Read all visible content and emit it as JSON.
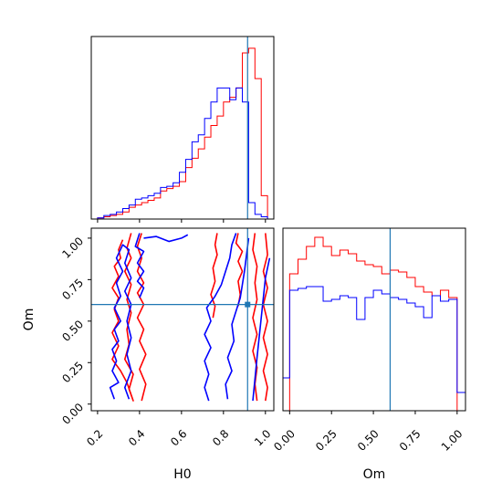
{
  "chart_data": {
    "type": "corner",
    "parameters": [
      "H0",
      "Om"
    ],
    "truth": {
      "H0": 0.915,
      "Om": 0.6,
      "color": "#1f77b4"
    },
    "series_colors": {
      "red": "#ff0000",
      "blue": "#0000ff"
    },
    "panels": [
      {
        "name": "H0 marginal",
        "type": "histogram-step",
        "xlim": [
          0.17,
          1.04
        ],
        "bin_edges": [
          0.17,
          0.2,
          0.23,
          0.26,
          0.29,
          0.32,
          0.35,
          0.38,
          0.41,
          0.44,
          0.47,
          0.5,
          0.53,
          0.56,
          0.59,
          0.62,
          0.65,
          0.68,
          0.71,
          0.74,
          0.77,
          0.8,
          0.83,
          0.86,
          0.89,
          0.92,
          0.95,
          0.98,
          1.01,
          1.04
        ],
        "series": [
          {
            "name": "red",
            "color": "#ff0000",
            "values": [
              0,
              0.005,
              0.01,
              0.015,
              0.02,
              0.03,
              0.05,
              0.06,
              0.07,
              0.08,
              0.09,
              0.12,
              0.13,
              0.14,
              0.16,
              0.22,
              0.26,
              0.3,
              0.35,
              0.4,
              0.44,
              0.5,
              0.52,
              0.56,
              0.71,
              0.73,
              0.6,
              0.1,
              0,
              0
            ]
          },
          {
            "name": "blue",
            "color": "#0000ff",
            "values": [
              0,
              0.005,
              0.015,
              0.02,
              0.03,
              0.045,
              0.06,
              0.085,
              0.09,
              0.1,
              0.11,
              0.135,
              0.14,
              0.155,
              0.2,
              0.255,
              0.33,
              0.36,
              0.43,
              0.5,
              0.56,
              0.56,
              0.51,
              0.56,
              0.5,
              0.07,
              0.02,
              0.01,
              0,
              0
            ]
          }
        ]
      },
      {
        "name": "Om marginal",
        "type": "histogram-step",
        "xlim": [
          -0.04,
          1.05
        ],
        "bin_edges": [
          -0.04,
          0.0,
          0.05,
          0.1,
          0.15,
          0.2,
          0.25,
          0.3,
          0.35,
          0.4,
          0.45,
          0.5,
          0.55,
          0.6,
          0.65,
          0.7,
          0.75,
          0.8,
          0.85,
          0.9,
          0.95,
          1.0,
          1.05
        ],
        "series": [
          {
            "name": "red",
            "color": "#ff0000",
            "values": [
              0,
              0.75,
              0.83,
              0.9,
              0.95,
              0.9,
              0.85,
              0.88,
              0.86,
              0.82,
              0.8,
              0.79,
              0.75,
              0.77,
              0.76,
              0.73,
              0.68,
              0.65,
              0.63,
              0.66,
              0.62,
              0
            ]
          },
          {
            "name": "blue",
            "color": "#0000ff",
            "values": [
              0.18,
              0.66,
              0.67,
              0.68,
              0.68,
              0.6,
              0.61,
              0.63,
              0.62,
              0.5,
              0.62,
              0.66,
              0.64,
              0.62,
              0.61,
              0.59,
              0.57,
              0.51,
              0.63,
              0.6,
              0.61,
              0.1
            ]
          }
        ]
      },
      {
        "name": "H0 vs Om",
        "type": "contour",
        "xlim": [
          0.17,
          1.04
        ],
        "ylim": [
          -0.04,
          1.06
        ],
        "series": [
          {
            "name": "red",
            "color": "#ff0000",
            "levels": [
              [
                [
                  0.32,
                  0.99
                ],
                [
                  0.3,
                  0.93
                ],
                [
                  0.31,
                  0.88
                ],
                [
                  0.28,
                  0.83
                ],
                [
                  0.3,
                  0.77
                ],
                [
                  0.27,
                  0.7
                ],
                [
                  0.3,
                  0.64
                ],
                [
                  0.28,
                  0.57
                ],
                [
                  0.3,
                  0.5
                ],
                [
                  0.27,
                  0.43
                ],
                [
                  0.3,
                  0.35
                ],
                [
                  0.27,
                  0.27
                ],
                [
                  0.31,
                  0.2
                ],
                [
                  0.34,
                  0.13
                ],
                [
                  0.37,
                  0.02
                ],
                [
                  0.35,
                  0.09
                ],
                [
                  0.37,
                  0.18
                ],
                [
                  0.33,
                  0.27
                ],
                [
                  0.35,
                  0.36
                ],
                [
                  0.34,
                  0.45
                ],
                [
                  0.36,
                  0.55
                ],
                [
                  0.34,
                  0.63
                ],
                [
                  0.36,
                  0.72
                ],
                [
                  0.33,
                  0.8
                ],
                [
                  0.36,
                  0.88
                ],
                [
                  0.34,
                  0.94
                ],
                [
                  0.36,
                  1.03
                ]
              ],
              [
                [
                  0.41,
                  1.03
                ],
                [
                  0.39,
                  0.95
                ],
                [
                  0.41,
                  0.88
                ],
                [
                  0.39,
                  0.8
                ],
                [
                  0.42,
                  0.73
                ],
                [
                  0.39,
                  0.67
                ],
                [
                  0.42,
                  0.6
                ],
                [
                  0.39,
                  0.52
                ],
                [
                  0.42,
                  0.45
                ],
                [
                  0.4,
                  0.38
                ],
                [
                  0.43,
                  0.3
                ],
                [
                  0.4,
                  0.21
                ],
                [
                  0.43,
                  0.12
                ],
                [
                  0.41,
                  0.02
                ]
              ],
              [
                [
                  0.77,
                  1.03
                ],
                [
                  0.76,
                  0.96
                ],
                [
                  0.77,
                  0.9
                ],
                [
                  0.75,
                  0.82
                ],
                [
                  0.76,
                  0.74
                ],
                [
                  0.74,
                  0.66
                ],
                [
                  0.76,
                  0.59
                ],
                [
                  0.75,
                  0.52
                ]
              ],
              [
                [
                  0.87,
                  1.03
                ],
                [
                  0.86,
                  0.97
                ],
                [
                  0.89,
                  0.92
                ],
                [
                  0.87,
                  0.86
                ],
                [
                  0.89,
                  0.8
                ],
                [
                  0.87,
                  0.74
                ],
                [
                  0.88,
                  0.66
                ],
                [
                  0.87,
                  0.59
                ]
              ],
              [
                [
                  0.95,
                  1.03
                ],
                [
                  0.94,
                  0.93
                ],
                [
                  0.96,
                  0.83
                ],
                [
                  0.95,
                  0.73
                ],
                [
                  0.96,
                  0.63
                ],
                [
                  0.94,
                  0.52
                ],
                [
                  0.96,
                  0.42
                ],
                [
                  0.94,
                  0.32
                ],
                [
                  0.96,
                  0.22
                ],
                [
                  0.95,
                  0.12
                ],
                [
                  0.96,
                  0.02
                ]
              ],
              [
                [
                  1.0,
                  1.03
                ],
                [
                  1.01,
                  0.9
                ],
                [
                  0.99,
                  0.8
                ],
                [
                  1.01,
                  0.7
                ],
                [
                  0.99,
                  0.6
                ],
                [
                  1.01,
                  0.5
                ],
                [
                  0.99,
                  0.4
                ],
                [
                  1.01,
                  0.3
                ],
                [
                  0.99,
                  0.2
                ],
                [
                  1.01,
                  0.1
                ],
                [
                  1.0,
                  0.02
                ]
              ]
            ]
          },
          {
            "name": "blue",
            "color": "#0000ff",
            "levels": [
              [
                [
                  0.28,
                  0.03
                ],
                [
                  0.26,
                  0.1
                ],
                [
                  0.3,
                  0.13
                ],
                [
                  0.27,
                  0.2
                ],
                [
                  0.29,
                  0.26
                ],
                [
                  0.27,
                  0.33
                ],
                [
                  0.3,
                  0.38
                ],
                [
                  0.28,
                  0.45
                ],
                [
                  0.31,
                  0.5
                ],
                [
                  0.28,
                  0.58
                ],
                [
                  0.31,
                  0.65
                ],
                [
                  0.29,
                  0.73
                ],
                [
                  0.32,
                  0.8
                ],
                [
                  0.29,
                  0.88
                ],
                [
                  0.32,
                  0.96
                ],
                [
                  0.35,
                  0.93
                ],
                [
                  0.33,
                  0.85
                ],
                [
                  0.36,
                  0.76
                ],
                [
                  0.33,
                  0.68
                ],
                [
                  0.36,
                  0.6
                ],
                [
                  0.34,
                  0.5
                ],
                [
                  0.36,
                  0.4
                ],
                [
                  0.34,
                  0.3
                ],
                [
                  0.36,
                  0.2
                ],
                [
                  0.33,
                  0.1
                ],
                [
                  0.35,
                  0.03
                ]
              ],
              [
                [
                  0.4,
                  1.03
                ],
                [
                  0.38,
                  0.95
                ],
                [
                  0.42,
                  0.92
                ],
                [
                  0.39,
                  0.85
                ],
                [
                  0.42,
                  0.8
                ],
                [
                  0.39,
                  0.74
                ],
                [
                  0.42,
                  0.7
                ],
                [
                  0.4,
                  0.64
                ]
              ],
              [
                [
                  0.42,
                  1.0
                ],
                [
                  0.48,
                  1.01
                ],
                [
                  0.54,
                  0.98
                ],
                [
                  0.6,
                  1.0
                ],
                [
                  0.63,
                  1.02
                ]
              ],
              [
                [
                  0.73,
                  0.02
                ],
                [
                  0.71,
                  0.1
                ],
                [
                  0.73,
                  0.18
                ],
                [
                  0.71,
                  0.26
                ],
                [
                  0.74,
                  0.34
                ],
                [
                  0.71,
                  0.42
                ],
                [
                  0.74,
                  0.5
                ],
                [
                  0.72,
                  0.58
                ],
                [
                  0.76,
                  0.65
                ],
                [
                  0.79,
                  0.72
                ],
                [
                  0.81,
                  0.8
                ],
                [
                  0.83,
                  0.88
                ],
                [
                  0.84,
                  0.96
                ],
                [
                  0.86,
                  1.03
                ]
              ],
              [
                [
                  0.82,
                  0.03
                ],
                [
                  0.81,
                  0.12
                ],
                [
                  0.84,
                  0.2
                ],
                [
                  0.82,
                  0.28
                ],
                [
                  0.85,
                  0.38
                ],
                [
                  0.84,
                  0.48
                ],
                [
                  0.86,
                  0.56
                ],
                [
                  0.88,
                  0.64
                ],
                [
                  0.89,
                  0.72
                ],
                [
                  0.9,
                  0.8
                ],
                [
                  0.91,
                  0.9
                ],
                [
                  0.92,
                  1.0
                ]
              ],
              [
                [
                  0.94,
                  0.02
                ],
                [
                  0.95,
                  0.15
                ],
                [
                  0.96,
                  0.28
                ],
                [
                  0.97,
                  0.4
                ],
                [
                  0.98,
                  0.52
                ],
                [
                  0.99,
                  0.64
                ],
                [
                  1.0,
                  0.76
                ],
                [
                  1.02,
                  0.88
                ]
              ]
            ]
          }
        ]
      }
    ],
    "axes": {
      "H0": {
        "label": "H0",
        "ticks": [
          0.2,
          0.4,
          0.6,
          0.8,
          1.0
        ],
        "tick_labels": [
          "0.2",
          "0.4",
          "0.6",
          "0.8",
          "1.0"
        ]
      },
      "Om_y": {
        "label": "Om",
        "ticks": [
          0.0,
          0.25,
          0.5,
          0.75,
          1.0
        ],
        "tick_labels": [
          "0.00",
          "0.25",
          "0.50",
          "0.75",
          "1.00"
        ]
      },
      "Om_x": {
        "label": "Om",
        "ticks": [
          0.0,
          0.25,
          0.5,
          0.75,
          1.0
        ],
        "tick_labels": [
          "0.00",
          "0.25",
          "0.50",
          "0.75",
          "1.00"
        ]
      }
    }
  }
}
